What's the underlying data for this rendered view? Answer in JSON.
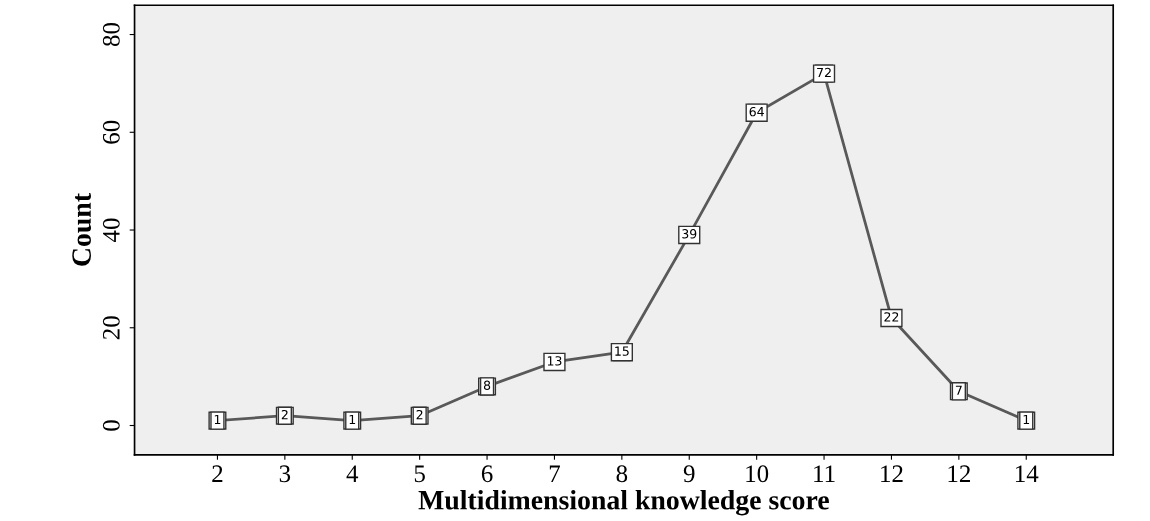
{
  "chart_data": {
    "type": "line",
    "xlabel": "Multidimensional knowledge score",
    "ylabel": "Count",
    "categories": [
      "2",
      "3",
      "4",
      "5",
      "6",
      "7",
      "8",
      "9",
      "10",
      "11",
      "12",
      "12",
      "14"
    ],
    "values": [
      1,
      2,
      1,
      2,
      8,
      13,
      15,
      39,
      64,
      72,
      22,
      7,
      1
    ],
    "color": "#595959",
    "marker": "square",
    "line_style": "solid",
    "data_labels": true,
    "grid": false,
    "legend": false,
    "ylim": [
      -6,
      86
    ],
    "yticks": [
      0,
      20,
      40,
      60,
      80
    ]
  }
}
